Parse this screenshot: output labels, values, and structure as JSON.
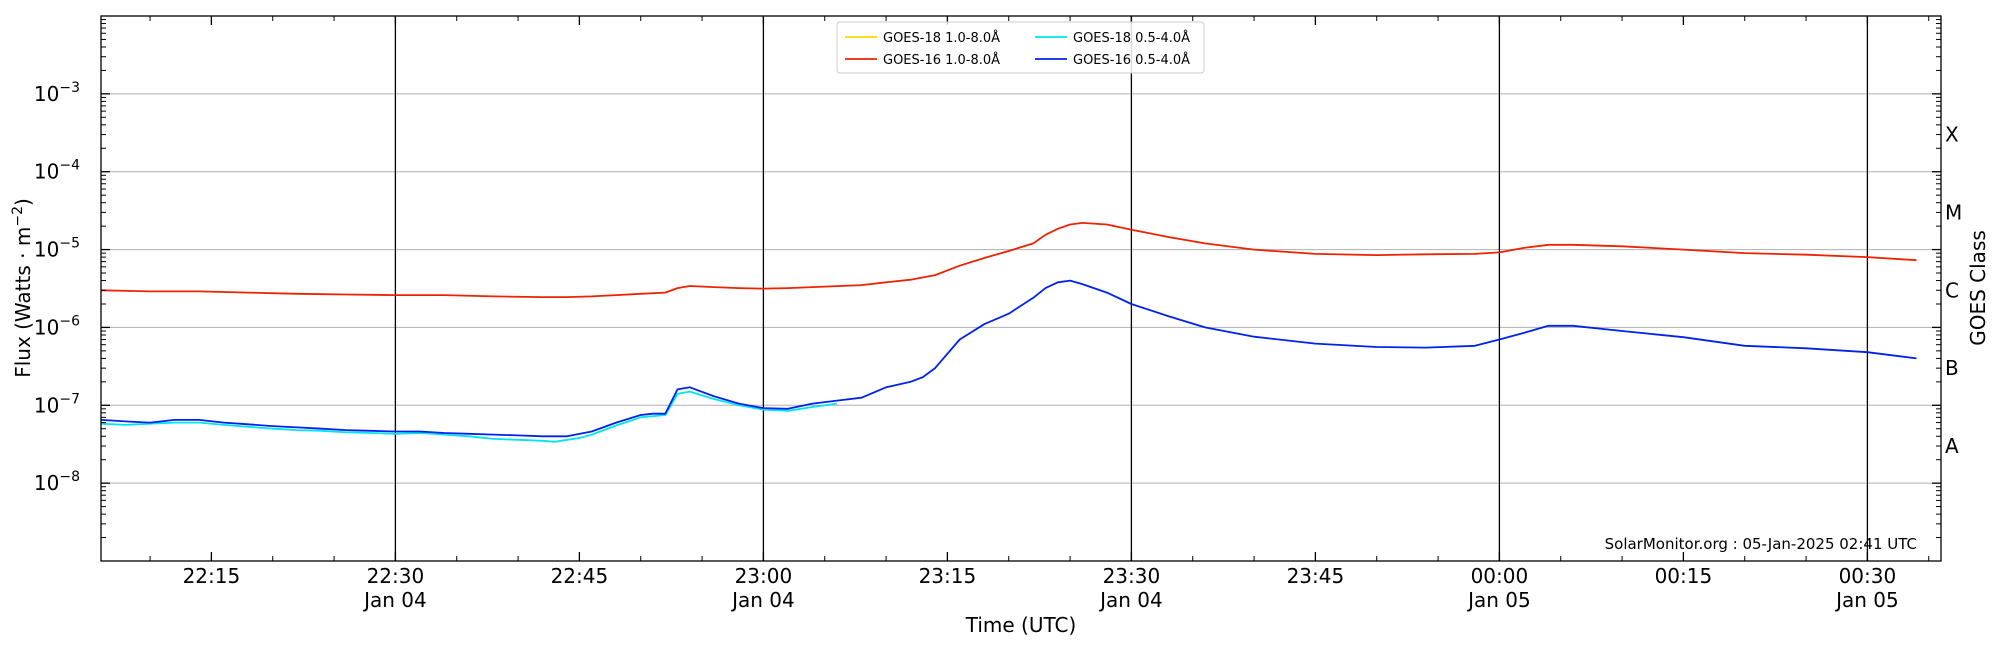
{
  "chart_data": {
    "type": "line",
    "xlabel": "Time (UTC)",
    "ylabel_main": "Flux (Watts · m",
    "ylabel_sup": "−2",
    "ylabel_close": ")",
    "y2label": "GOES Class",
    "yscale": "log",
    "ylim": [
      1e-09,
      0.01
    ],
    "xlim": [
      "2025-01-04 22:06",
      "2025-01-05 00:36"
    ],
    "grid": "horizontal",
    "legend_position": "top-center",
    "credit": "SolarMonitor.org : 05-Jan-2025 02:41 UTC",
    "y_ticks": [
      {
        "value": 1e-08,
        "base": "10",
        "exp": "−8"
      },
      {
        "value": 1e-07,
        "base": "10",
        "exp": "−7"
      },
      {
        "value": 1e-06,
        "base": "10",
        "exp": "−6"
      },
      {
        "value": 1e-05,
        "base": "10",
        "exp": "−5"
      },
      {
        "value": 0.0001,
        "base": "10",
        "exp": "−4"
      },
      {
        "value": 0.001,
        "base": "10",
        "exp": "−3"
      }
    ],
    "x_ticks": [
      {
        "time": "2025-01-04 22:15",
        "label": "22:15",
        "sublabel": ""
      },
      {
        "time": "2025-01-04 22:30",
        "label": "22:30",
        "sublabel": "Jan 04"
      },
      {
        "time": "2025-01-04 22:45",
        "label": "22:45",
        "sublabel": ""
      },
      {
        "time": "2025-01-04 23:00",
        "label": "23:00",
        "sublabel": "Jan 04"
      },
      {
        "time": "2025-01-04 23:15",
        "label": "23:15",
        "sublabel": ""
      },
      {
        "time": "2025-01-04 23:30",
        "label": "23:30",
        "sublabel": "Jan 04"
      },
      {
        "time": "2025-01-04 23:45",
        "label": "23:45",
        "sublabel": ""
      },
      {
        "time": "2025-01-05 00:00",
        "label": "00:00",
        "sublabel": "Jan 05"
      },
      {
        "time": "2025-01-05 00:15",
        "label": "00:15",
        "sublabel": ""
      },
      {
        "time": "2025-01-05 00:30",
        "label": "00:30",
        "sublabel": "Jan 05"
      }
    ],
    "vertical_lines": [
      "2025-01-04 22:30",
      "2025-01-04 23:00",
      "2025-01-04 23:30",
      "2025-01-05 00:00",
      "2025-01-05 00:30"
    ],
    "goes_classes": [
      {
        "label": "A",
        "flux": 3e-08
      },
      {
        "label": "B",
        "flux": 3e-07
      },
      {
        "label": "C",
        "flux": 3e-06
      },
      {
        "label": "M",
        "flux": 3e-05
      },
      {
        "label": "X",
        "flux": 0.0003
      }
    ],
    "series": [
      {
        "name": "GOES-18 1.0-8.0Å",
        "color": "#ffd700",
        "x": [],
        "y": []
      },
      {
        "name": "GOES-16 1.0-8.0Å",
        "color": "#ee2200",
        "x": [
          "2025-01-04 22:06",
          "2025-01-04 22:10",
          "2025-01-04 22:14",
          "2025-01-04 22:18",
          "2025-01-04 22:22",
          "2025-01-04 22:26",
          "2025-01-04 22:30",
          "2025-01-04 22:34",
          "2025-01-04 22:38",
          "2025-01-04 22:42",
          "2025-01-04 22:44",
          "2025-01-04 22:46",
          "2025-01-04 22:48",
          "2025-01-04 22:50",
          "2025-01-04 22:52",
          "2025-01-04 22:53",
          "2025-01-04 22:54",
          "2025-01-04 22:56",
          "2025-01-04 22:58",
          "2025-01-04 23:00",
          "2025-01-04 23:02",
          "2025-01-04 23:04",
          "2025-01-04 23:08",
          "2025-01-04 23:10",
          "2025-01-04 23:12",
          "2025-01-04 23:14",
          "2025-01-04 23:16",
          "2025-01-04 23:18",
          "2025-01-04 23:20",
          "2025-01-04 23:22",
          "2025-01-04 23:23",
          "2025-01-04 23:24",
          "2025-01-04 23:25",
          "2025-01-04 23:26",
          "2025-01-04 23:28",
          "2025-01-04 23:30",
          "2025-01-04 23:33",
          "2025-01-04 23:36",
          "2025-01-04 23:40",
          "2025-01-04 23:45",
          "2025-01-04 23:50",
          "2025-01-04 23:54",
          "2025-01-04 23:58",
          "2025-01-05 00:00",
          "2025-01-05 00:02",
          "2025-01-05 00:04",
          "2025-01-05 00:06",
          "2025-01-05 00:10",
          "2025-01-05 00:15",
          "2025-01-05 00:20",
          "2025-01-05 00:25",
          "2025-01-05 00:30",
          "2025-01-05 00:34"
        ],
        "y": [
          3e-06,
          2.9e-06,
          2.9e-06,
          2.8e-06,
          2.7e-06,
          2.65e-06,
          2.6e-06,
          2.6e-06,
          2.5e-06,
          2.45e-06,
          2.45e-06,
          2.5e-06,
          2.6e-06,
          2.7e-06,
          2.8e-06,
          3.2e-06,
          3.4e-06,
          3.3e-06,
          3.2e-06,
          3.15e-06,
          3.2e-06,
          3.3e-06,
          3.5e-06,
          3.8e-06,
          4.1e-06,
          4.7e-06,
          6.2e-06,
          7.8e-06,
          9.6e-06,
          1.2e-05,
          1.55e-05,
          1.85e-05,
          2.1e-05,
          2.2e-05,
          2.1e-05,
          1.8e-05,
          1.45e-05,
          1.2e-05,
          1e-05,
          8.8e-06,
          8.5e-06,
          8.7e-06,
          8.8e-06,
          9.2e-06,
          1.05e-05,
          1.15e-05,
          1.15e-05,
          1.1e-05,
          1e-05,
          9e-06,
          8.6e-06,
          8e-06,
          7.3e-06
        ]
      },
      {
        "name": "GOES-18 0.5-4.0Å",
        "color": "#00e5ee",
        "x": [
          "2025-01-04 22:06",
          "2025-01-04 22:08",
          "2025-01-04 22:10",
          "2025-01-04 22:12",
          "2025-01-04 22:14",
          "2025-01-04 22:16",
          "2025-01-04 22:18",
          "2025-01-04 22:20",
          "2025-01-04 22:22",
          "2025-01-04 22:24",
          "2025-01-04 22:26",
          "2025-01-04 22:28",
          "2025-01-04 22:30",
          "2025-01-04 22:32",
          "2025-01-04 22:34",
          "2025-01-04 22:36",
          "2025-01-04 22:38",
          "2025-01-04 22:40",
          "2025-01-04 22:42",
          "2025-01-04 22:43",
          "2025-01-04 22:44",
          "2025-01-04 22:45",
          "2025-01-04 22:46",
          "2025-01-04 22:48",
          "2025-01-04 22:50",
          "2025-01-04 22:52",
          "2025-01-04 22:53",
          "2025-01-04 22:54",
          "2025-01-04 22:56",
          "2025-01-04 22:58",
          "2025-01-04 23:00",
          "2025-01-04 23:02",
          "2025-01-04 23:04",
          "2025-01-04 23:06"
        ],
        "y": [
          5.8e-08,
          5.6e-08,
          5.8e-08,
          6e-08,
          6e-08,
          5.6e-08,
          5.3e-08,
          5e-08,
          4.8e-08,
          4.7e-08,
          4.5e-08,
          4.4e-08,
          4.3e-08,
          4.4e-08,
          4.2e-08,
          4e-08,
          3.7e-08,
          3.6e-08,
          3.5e-08,
          3.4e-08,
          3.6e-08,
          3.8e-08,
          4.2e-08,
          5.5e-08,
          7e-08,
          7.5e-08,
          1.4e-07,
          1.5e-07,
          1.2e-07,
          1e-07,
          8.8e-08,
          8.5e-08,
          9.5e-08,
          1.05e-07
        ]
      },
      {
        "name": "GOES-16 0.5-4.0Å",
        "color": "#0022ee",
        "x": [
          "2025-01-04 22:06",
          "2025-01-04 22:08",
          "2025-01-04 22:10",
          "2025-01-04 22:12",
          "2025-01-04 22:14",
          "2025-01-04 22:16",
          "2025-01-04 22:18",
          "2025-01-04 22:20",
          "2025-01-04 22:22",
          "2025-01-04 22:24",
          "2025-01-04 22:26",
          "2025-01-04 22:28",
          "2025-01-04 22:30",
          "2025-01-04 22:32",
          "2025-01-04 22:34",
          "2025-01-04 22:36",
          "2025-01-04 22:38",
          "2025-01-04 22:40",
          "2025-01-04 22:42",
          "2025-01-04 22:44",
          "2025-01-04 22:46",
          "2025-01-04 22:48",
          "2025-01-04 22:50",
          "2025-01-04 22:51",
          "2025-01-04 22:52",
          "2025-01-04 22:53",
          "2025-01-04 22:54",
          "2025-01-04 22:56",
          "2025-01-04 22:58",
          "2025-01-04 23:00",
          "2025-01-04 23:02",
          "2025-01-04 23:04",
          "2025-01-04 23:06",
          "2025-01-04 23:08",
          "2025-01-04 23:10",
          "2025-01-04 23:12",
          "2025-01-04 23:13",
          "2025-01-04 23:14",
          "2025-01-04 23:16",
          "2025-01-04 23:18",
          "2025-01-04 23:20",
          "2025-01-04 23:22",
          "2025-01-04 23:23",
          "2025-01-04 23:24",
          "2025-01-04 23:25",
          "2025-01-04 23:26",
          "2025-01-04 23:28",
          "2025-01-04 23:30",
          "2025-01-04 23:33",
          "2025-01-04 23:36",
          "2025-01-04 23:40",
          "2025-01-04 23:45",
          "2025-01-04 23:50",
          "2025-01-04 23:54",
          "2025-01-04 23:58",
          "2025-01-05 00:00",
          "2025-01-05 00:02",
          "2025-01-05 00:04",
          "2025-01-05 00:06",
          "2025-01-05 00:10",
          "2025-01-05 00:15",
          "2025-01-05 00:20",
          "2025-01-05 00:25",
          "2025-01-05 00:30",
          "2025-01-05 00:34"
        ],
        "y": [
          6.5e-08,
          6.2e-08,
          6e-08,
          6.5e-08,
          6.5e-08,
          6e-08,
          5.7e-08,
          5.4e-08,
          5.2e-08,
          5e-08,
          4.8e-08,
          4.7e-08,
          4.6e-08,
          4.6e-08,
          4.4e-08,
          4.3e-08,
          4.2e-08,
          4.1e-08,
          4e-08,
          4e-08,
          4.6e-08,
          6e-08,
          7.5e-08,
          7.8e-08,
          7.8e-08,
          1.6e-07,
          1.7e-07,
          1.3e-07,
          1.05e-07,
          9.2e-08,
          9e-08,
          1.05e-07,
          1.15e-07,
          1.25e-07,
          1.7e-07,
          2e-07,
          2.3e-07,
          3e-07,
          7e-07,
          1.1e-06,
          1.5e-06,
          2.4e-06,
          3.2e-06,
          3.8e-06,
          4e-06,
          3.6e-06,
          2.8e-06,
          2e-06,
          1.4e-06,
          1e-06,
          7.6e-07,
          6.2e-07,
          5.6e-07,
          5.5e-07,
          5.8e-07,
          7e-07,
          8.5e-07,
          1.05e-06,
          1.05e-06,
          9e-07,
          7.5e-07,
          5.8e-07,
          5.4e-07,
          4.8e-07,
          4e-07
        ]
      }
    ]
  }
}
